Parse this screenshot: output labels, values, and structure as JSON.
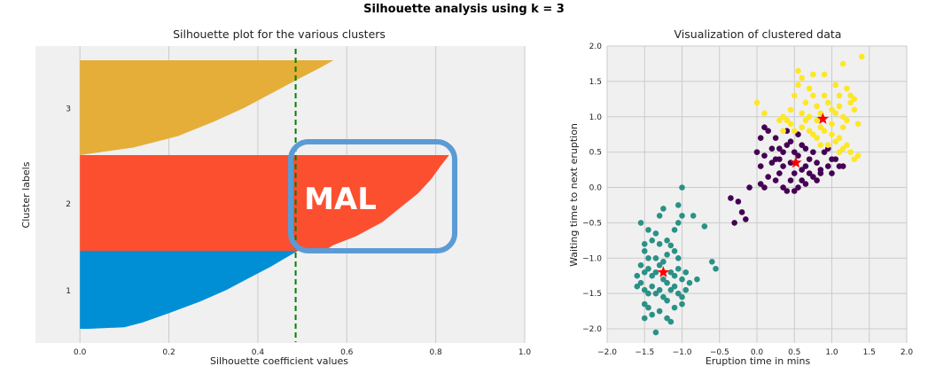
{
  "suptitle": "Silhouette analysis using k = 3",
  "chart_data": [
    {
      "type": "bar",
      "orientation": "horizontal",
      "title": "Silhouette plot for the various clusters",
      "xlabel": "Silhouette coefficient values",
      "ylabel": "Cluster labels",
      "xlim": [
        -0.1,
        1.0
      ],
      "xticks": [
        "0.0",
        "0.2",
        "0.4",
        "0.6",
        "0.8",
        "1.0"
      ],
      "yticks": [
        "1",
        "2",
        "3"
      ],
      "grid": true,
      "average_silhouette": 0.485,
      "average_line_color": "#008000",
      "clusters": [
        {
          "label": "1",
          "color": "#008fd5",
          "count": 100,
          "max_value": 0.49,
          "min_value": 0.02,
          "profile": [
            [
              0,
              0.02
            ],
            [
              0.02,
              0.1
            ],
            [
              0.08,
              0.14
            ],
            [
              0.2,
              0.2
            ],
            [
              0.35,
              0.27
            ],
            [
              0.5,
              0.33
            ],
            [
              0.65,
              0.38
            ],
            [
              0.8,
              0.43
            ],
            [
              0.9,
              0.46
            ],
            [
              1,
              0.49
            ]
          ]
        },
        {
          "label": "2",
          "color": "#fc4f30",
          "count": 100,
          "max_value": 0.83,
          "min_value": 0.55,
          "profile": [
            [
              0,
              0.55
            ],
            [
              0.06,
              0.57
            ],
            [
              0.15,
              0.62
            ],
            [
              0.3,
              0.68
            ],
            [
              0.45,
              0.72
            ],
            [
              0.6,
              0.76
            ],
            [
              0.75,
              0.79
            ],
            [
              0.88,
              0.81
            ],
            [
              1,
              0.83
            ]
          ]
        },
        {
          "label": "3",
          "color": "#e5ae38",
          "count": 100,
          "max_value": 0.57,
          "min_value": 0.0,
          "profile": [
            [
              0,
              0.0
            ],
            [
              0.08,
              0.12
            ],
            [
              0.2,
              0.22
            ],
            [
              0.35,
              0.3
            ],
            [
              0.5,
              0.37
            ],
            [
              0.65,
              0.43
            ],
            [
              0.8,
              0.49
            ],
            [
              0.92,
              0.54
            ],
            [
              1,
              0.57
            ]
          ]
        }
      ],
      "overlay_text": "MAL",
      "overlay_color": "#5b9bd5"
    },
    {
      "type": "scatter",
      "title": "Visualization of clustered data",
      "xlabel": "Eruption time in mins",
      "ylabel": "Waiting time to next eruption",
      "xlim": [
        -2.0,
        2.0
      ],
      "ylim": [
        -2.2,
        2.0
      ],
      "xticks": [
        "−2.0",
        "−1.5",
        "−1.0",
        "−0.5",
        "0.0",
        "0.5",
        "1.0",
        "1.5",
        "2.0"
      ],
      "yticks": [
        "2.0",
        "1.5",
        "1.0",
        "0.5",
        "0.0",
        "−0.5",
        "−1.0",
        "−1.5",
        "−2.0"
      ],
      "grid": true,
      "series": [
        {
          "color": "#2a9187",
          "points": [
            [
              -1.55,
              -0.5
            ],
            [
              -1.45,
              -0.6
            ],
            [
              -1.3,
              -0.4
            ],
            [
              -1.25,
              -0.3
            ],
            [
              -1.35,
              -0.65
            ],
            [
              -1.5,
              -0.8
            ],
            [
              -1.4,
              -0.75
            ],
            [
              -1.3,
              -0.8
            ],
            [
              -1.2,
              -0.75
            ],
            [
              -1.15,
              -0.82
            ],
            [
              -1.1,
              -0.6
            ],
            [
              -1.05,
              -0.5
            ],
            [
              -1.0,
              -0.4
            ],
            [
              -1.05,
              -0.25
            ],
            [
              -1.0,
              0.0
            ],
            [
              -0.85,
              -0.4
            ],
            [
              -0.7,
              -0.55
            ],
            [
              -1.5,
              -0.9
            ],
            [
              -1.45,
              -1.0
            ],
            [
              -1.35,
              -1.0
            ],
            [
              -1.25,
              -1.05
            ],
            [
              -1.2,
              -0.95
            ],
            [
              -1.1,
              -0.9
            ],
            [
              -1.05,
              -1.0
            ],
            [
              -1.55,
              -1.1
            ],
            [
              -1.5,
              -1.2
            ],
            [
              -1.45,
              -1.15
            ],
            [
              -1.4,
              -1.25
            ],
            [
              -1.35,
              -1.2
            ],
            [
              -1.3,
              -1.1
            ],
            [
              -1.25,
              -1.3
            ],
            [
              -1.2,
              -1.35
            ],
            [
              -1.15,
              -1.2
            ],
            [
              -1.1,
              -1.25
            ],
            [
              -1.05,
              -1.15
            ],
            [
              -1.0,
              -1.3
            ],
            [
              -0.95,
              -1.2
            ],
            [
              -0.9,
              -1.35
            ],
            [
              -0.8,
              -1.3
            ],
            [
              -0.6,
              -1.05
            ],
            [
              -0.55,
              -1.15
            ],
            [
              -1.6,
              -1.4
            ],
            [
              -1.55,
              -1.35
            ],
            [
              -1.5,
              -1.45
            ],
            [
              -1.45,
              -1.5
            ],
            [
              -1.4,
              -1.4
            ],
            [
              -1.3,
              -1.45
            ],
            [
              -1.25,
              -1.55
            ],
            [
              -1.2,
              -1.6
            ],
            [
              -1.15,
              -1.45
            ],
            [
              -1.1,
              -1.4
            ],
            [
              -1.05,
              -1.5
            ],
            [
              -0.95,
              -1.45
            ],
            [
              -1.5,
              -1.65
            ],
            [
              -1.45,
              -1.7
            ],
            [
              -1.4,
              -1.8
            ],
            [
              -1.5,
              -1.85
            ],
            [
              -1.3,
              -1.75
            ],
            [
              -1.2,
              -1.85
            ],
            [
              -1.1,
              -1.7
            ],
            [
              -1.0,
              -1.65
            ],
            [
              -1.35,
              -2.05
            ],
            [
              -1.15,
              -1.9
            ],
            [
              -1.0,
              -1.55
            ],
            [
              -1.6,
              -1.25
            ],
            [
              -1.35,
              -1.5
            ]
          ]
        },
        {
          "color": "#440154",
          "points": [
            [
              -0.35,
              -0.15
            ],
            [
              -0.3,
              -0.5
            ],
            [
              -0.2,
              -0.35
            ],
            [
              -0.15,
              -0.45
            ],
            [
              -0.25,
              -0.2
            ],
            [
              -0.1,
              0.0
            ],
            [
              0.05,
              0.05
            ],
            [
              0.1,
              0.0
            ],
            [
              0.15,
              0.15
            ],
            [
              0.25,
              0.1
            ],
            [
              0.3,
              0.2
            ],
            [
              0.35,
              0.0
            ],
            [
              0.4,
              -0.05
            ],
            [
              0.45,
              0.1
            ],
            [
              0.5,
              0.2
            ],
            [
              0.55,
              0.0
            ],
            [
              0.6,
              0.1
            ],
            [
              0.65,
              0.3
            ],
            [
              0.7,
              0.4
            ],
            [
              0.75,
              0.5
            ],
            [
              0.8,
              0.35
            ],
            [
              0.85,
              0.2
            ],
            [
              0.9,
              0.5
            ],
            [
              0.95,
              0.3
            ],
            [
              1.0,
              0.2
            ],
            [
              1.05,
              0.4
            ],
            [
              1.1,
              0.3
            ],
            [
              1.15,
              0.3
            ],
            [
              0.2,
              0.35
            ],
            [
              0.25,
              0.4
            ],
            [
              0.35,
              0.5
            ],
            [
              0.4,
              0.6
            ],
            [
              0.45,
              0.35
            ],
            [
              0.55,
              0.45
            ],
            [
              0.6,
              0.6
            ],
            [
              0.65,
              0.55
            ],
            [
              0.7,
              0.2
            ],
            [
              0.75,
              0.15
            ],
            [
              0.8,
              0.1
            ],
            [
              0.85,
              0.25
            ],
            [
              0.5,
              -0.05
            ],
            [
              0.3,
              0.55
            ],
            [
              0.25,
              0.7
            ],
            [
              0.1,
              0.85
            ],
            [
              0.05,
              0.7
            ],
            [
              0.0,
              0.5
            ],
            [
              0.15,
              0.8
            ],
            [
              0.2,
              0.55
            ],
            [
              0.4,
              0.8
            ],
            [
              0.45,
              0.65
            ],
            [
              0.55,
              0.75
            ],
            [
              0.6,
              0.25
            ],
            [
              0.65,
              0.05
            ],
            [
              0.35,
              0.3
            ],
            [
              0.95,
              0.55
            ],
            [
              1.0,
              0.4
            ],
            [
              0.05,
              0.3
            ],
            [
              0.1,
              0.45
            ],
            [
              0.3,
              0.4
            ],
            [
              0.5,
              0.5
            ]
          ]
        },
        {
          "color": "#fde725",
          "points": [
            [
              0.0,
              1.2
            ],
            [
              0.1,
              1.05
            ],
            [
              0.3,
              0.95
            ],
            [
              0.35,
              1.0
            ],
            [
              0.4,
              0.95
            ],
            [
              0.45,
              1.1
            ],
            [
              0.5,
              1.3
            ],
            [
              0.55,
              1.45
            ],
            [
              0.6,
              1.55
            ],
            [
              0.65,
              1.2
            ],
            [
              0.7,
              1.4
            ],
            [
              0.75,
              1.3
            ],
            [
              0.8,
              1.15
            ],
            [
              0.85,
              1.05
            ],
            [
              0.9,
              1.3
            ],
            [
              0.95,
              1.2
            ],
            [
              1.0,
              1.1
            ],
            [
              1.05,
              1.45
            ],
            [
              1.1,
              1.3
            ],
            [
              1.15,
              1.0
            ],
            [
              1.2,
              0.95
            ],
            [
              1.25,
              1.2
            ],
            [
              1.3,
              1.1
            ],
            [
              1.35,
              0.9
            ],
            [
              1.4,
              1.85
            ],
            [
              1.15,
              1.75
            ],
            [
              0.9,
              1.6
            ],
            [
              0.75,
              1.6
            ],
            [
              0.55,
              1.65
            ],
            [
              0.5,
              0.8
            ],
            [
              0.6,
              0.85
            ],
            [
              0.7,
              0.8
            ],
            [
              0.75,
              0.75
            ],
            [
              0.8,
              0.7
            ],
            [
              0.85,
              0.85
            ],
            [
              0.9,
              0.8
            ],
            [
              0.95,
              0.6
            ],
            [
              1.0,
              0.75
            ],
            [
              1.05,
              0.65
            ],
            [
              1.1,
              0.7
            ],
            [
              1.15,
              0.55
            ],
            [
              1.2,
              0.6
            ],
            [
              1.25,
              0.5
            ],
            [
              1.3,
              0.4
            ],
            [
              1.35,
              0.45
            ],
            [
              0.65,
              0.95
            ],
            [
              0.7,
              1.0
            ],
            [
              0.8,
              0.95
            ],
            [
              1.05,
              1.05
            ],
            [
              1.1,
              1.15
            ],
            [
              1.2,
              1.4
            ],
            [
              1.25,
              1.3
            ],
            [
              1.3,
              1.25
            ],
            [
              0.6,
              1.05
            ],
            [
              0.45,
              0.9
            ],
            [
              0.35,
              0.8
            ],
            [
              1.0,
              0.9
            ],
            [
              1.15,
              0.85
            ],
            [
              0.85,
              0.6
            ],
            [
              1.1,
              0.5
            ]
          ]
        }
      ],
      "centroids": {
        "color": "#ff0000",
        "points": [
          [
            -1.25,
            -1.2
          ],
          [
            0.52,
            0.35
          ],
          [
            0.88,
            0.97
          ]
        ]
      }
    }
  ]
}
